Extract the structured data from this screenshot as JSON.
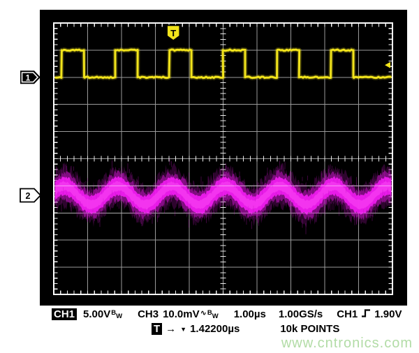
{
  "screen": {
    "watermark": "www.cntronics.com",
    "colors": {
      "bezel": "#000000",
      "grid_line": "#9a9a9a",
      "grid_border": "#ffffff",
      "ch1_trace": "#f2e41c",
      "ch3_trace": "#ee1cee",
      "watermark": "#b2dca6",
      "trigger_marker": "#f2e41c"
    },
    "markers": {
      "ch1_label": "1",
      "ch2_label": "2",
      "trigger_label": "T"
    }
  },
  "chart_data": {
    "type": "line",
    "title": "Oscilloscope capture: CH1 square wave, CH3 noisy sine",
    "x_axis": {
      "units": "µs",
      "seconds_per_div": "1.00µs",
      "divisions": 10,
      "range": [
        0,
        10
      ],
      "grid": true
    },
    "y_axis": {
      "divisions": 10,
      "grid": true
    },
    "series": [
      {
        "name": "CH1",
        "kind": "square",
        "color": "#f2e41c",
        "volts_per_div": "5.00V",
        "low_div": 2.0,
        "high_div": 1.0,
        "first_rise_us": 0.23,
        "period_us": 1.59,
        "pulse_width_us": 0.66
      },
      {
        "name": "CH3",
        "kind": "noisy_sine",
        "color": "#ee1cee",
        "volts_per_div": "10.0mV",
        "center_div": 6.35,
        "amplitude_div": 0.34,
        "first_peak_us": 0.31,
        "period_us": 1.59,
        "noise_core_div": 0.27,
        "noise_fuzz_div": 0.88
      }
    ],
    "trigger": {
      "source": "CH1",
      "slope": "rising",
      "level": "1.90V",
      "time_marker_div": 3.53,
      "level_marker_div": 1.55,
      "delay_readout": "1.42200µs"
    },
    "sample_rate": "1.00GS/s",
    "record_length": "10k POINTS"
  },
  "status_bar": {
    "line1": {
      "ch1_badge": "CH1",
      "ch1_scale": "5.00V",
      "ch1_bw_hi": "B",
      "ch1_bw_lo": "W",
      "ch3_label": "CH3",
      "ch3_scale": "10.0mV",
      "ch3_coupling": "∿",
      "ch3_bw_hi": "B",
      "ch3_bw_lo": "W",
      "timebase": "1.00µs",
      "sample_rate": "1.00GS/s",
      "trig_source": "CH1",
      "trig_level": "1.90V"
    },
    "line2": {
      "t_badge": "T",
      "arrow": "→",
      "down_arrow": "▼",
      "delay": "1.42200µs",
      "record_length": "10k POINTS"
    }
  }
}
